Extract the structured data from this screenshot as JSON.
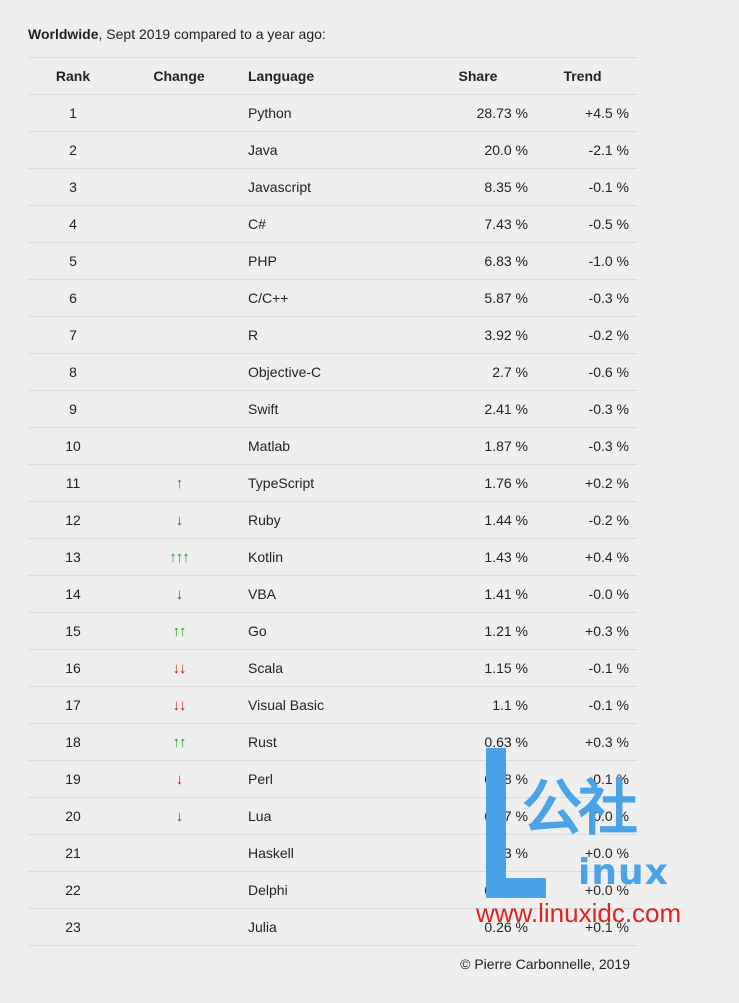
{
  "intro": {
    "bold": "Worldwide",
    "rest": ", Sept 2019 compared to a year ago:"
  },
  "headers": {
    "rank": "Rank",
    "change": "Change",
    "language": "Language",
    "share": "Share",
    "trend": "Trend"
  },
  "rows": [
    {
      "rank": "1",
      "change": "",
      "change_dir": "",
      "language": "Python",
      "share": "28.73 %",
      "trend": "+4.5 %"
    },
    {
      "rank": "2",
      "change": "",
      "change_dir": "",
      "language": "Java",
      "share": "20.0 %",
      "trend": "-2.1 %"
    },
    {
      "rank": "3",
      "change": "",
      "change_dir": "",
      "language": "Javascript",
      "share": "8.35 %",
      "trend": "-0.1 %"
    },
    {
      "rank": "4",
      "change": "",
      "change_dir": "",
      "language": "C#",
      "share": "7.43 %",
      "trend": "-0.5 %"
    },
    {
      "rank": "5",
      "change": "",
      "change_dir": "",
      "language": "PHP",
      "share": "6.83 %",
      "trend": "-1.0 %"
    },
    {
      "rank": "6",
      "change": "",
      "change_dir": "",
      "language": "C/C++",
      "share": "5.87 %",
      "trend": "-0.3 %"
    },
    {
      "rank": "7",
      "change": "",
      "change_dir": "",
      "language": "R",
      "share": "3.92 %",
      "trend": "-0.2 %"
    },
    {
      "rank": "8",
      "change": "",
      "change_dir": "",
      "language": "Objective-C",
      "share": "2.7 %",
      "trend": "-0.6 %"
    },
    {
      "rank": "9",
      "change": "",
      "change_dir": "",
      "language": "Swift",
      "share": "2.41 %",
      "trend": "-0.3 %"
    },
    {
      "rank": "10",
      "change": "",
      "change_dir": "",
      "language": "Matlab",
      "share": "1.87 %",
      "trend": "-0.3 %"
    },
    {
      "rank": "11",
      "change": "↑",
      "change_dir": "up",
      "language": "TypeScript",
      "share": "1.76 %",
      "trend": "+0.2 %"
    },
    {
      "rank": "12",
      "change": "↓",
      "change_dir": "down",
      "language": "Ruby",
      "share": "1.44 %",
      "trend": "-0.2 %"
    },
    {
      "rank": "13",
      "change": "↑↑↑",
      "change_dir": "up",
      "language": "Kotlin",
      "share": "1.43 %",
      "trend": "+0.4 %"
    },
    {
      "rank": "14",
      "change": "↓",
      "change_dir": "down",
      "language": "VBA",
      "share": "1.41 %",
      "trend": "-0.0 %"
    },
    {
      "rank": "15",
      "change": "↑↑",
      "change_dir": "up",
      "language": "Go",
      "share": "1.21 %",
      "trend": "+0.3 %"
    },
    {
      "rank": "16",
      "change": "↓↓",
      "change_dir": "down",
      "language": "Scala",
      "share": "1.15 %",
      "trend": "-0.1 %"
    },
    {
      "rank": "17",
      "change": "↓↓",
      "change_dir": "down",
      "language": "Visual Basic",
      "share": "1.1 %",
      "trend": "-0.1 %"
    },
    {
      "rank": "18",
      "change": "↑↑",
      "change_dir": "up",
      "language": "Rust",
      "share": "0.63 %",
      "trend": "+0.3 %"
    },
    {
      "rank": "19",
      "change": "↓",
      "change_dir": "down",
      "language": "Perl",
      "share": "0.58 %",
      "trend": "-0.1 %"
    },
    {
      "rank": "20",
      "change": "↓",
      "change_dir": "down",
      "language": "Lua",
      "share": "0.37 %",
      "trend": "-0.0 %"
    },
    {
      "rank": "21",
      "change": "",
      "change_dir": "",
      "language": "Haskell",
      "share": "0.3 %",
      "trend": "+0.0 %"
    },
    {
      "rank": "22",
      "change": "",
      "change_dir": "",
      "language": "Delphi",
      "share": "0.27 %",
      "trend": "+0.0 %"
    },
    {
      "rank": "23",
      "change": "",
      "change_dir": "",
      "language": "Julia",
      "share": "0.26 %",
      "trend": "+0.1 %"
    }
  ],
  "credit": "© Pierre Carbonnelle, 2019",
  "watermark": {
    "l": "L",
    "cn": "公社",
    "inux": "inux",
    "url": "www.linuxidc.com"
  },
  "colors": {
    "up": "#1a9c1a",
    "down": "#cc1111",
    "watermark_blue": "#4aa3e6",
    "watermark_red": "#e02222"
  }
}
